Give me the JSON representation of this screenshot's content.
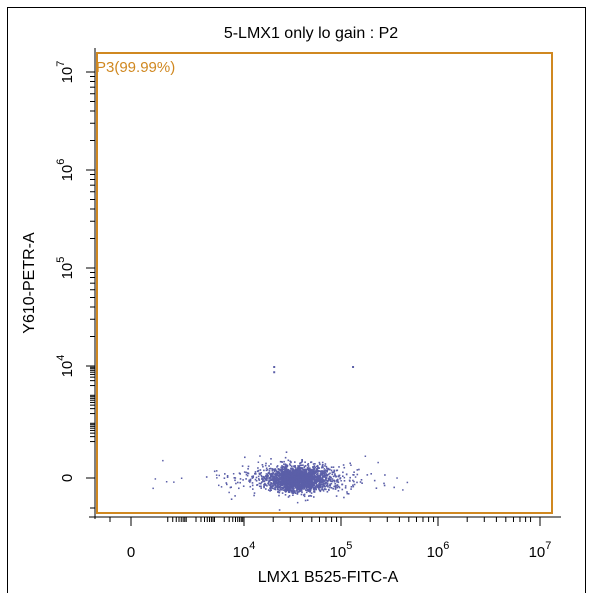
{
  "chart_data": {
    "type": "scatter",
    "title": "5-LMX1 only lo gain : P2",
    "xlabel": "LMX1 B525-FITC-A",
    "ylabel": "Y610-PETR-A",
    "x_scale": "biexponential",
    "y_scale": "biexponential",
    "x_ticks": [
      {
        "base": "0",
        "exp": ""
      },
      {
        "base": "10",
        "exp": "4"
      },
      {
        "base": "10",
        "exp": "5"
      },
      {
        "base": "10",
        "exp": "6"
      },
      {
        "base": "10",
        "exp": "7"
      }
    ],
    "y_ticks": [
      {
        "base": "0",
        "exp": ""
      },
      {
        "base": "10",
        "exp": "4"
      },
      {
        "base": "10",
        "exp": "5"
      },
      {
        "base": "10",
        "exp": "6"
      },
      {
        "base": "10",
        "exp": "7"
      }
    ],
    "gate": {
      "name": "P3",
      "label": "P3(99.99%)",
      "percent": 99.99,
      "color": "#d08820"
    },
    "population": {
      "color": "#5b5fa8",
      "center": {
        "x": 35000,
        "y": 0
      },
      "x_range": [
        3000,
        250000
      ],
      "outliers": [
        {
          "x": 20000,
          "y": 10000
        },
        {
          "x": 130000,
          "y": 10000
        },
        {
          "x": 20000,
          "y": 6500
        }
      ]
    }
  }
}
